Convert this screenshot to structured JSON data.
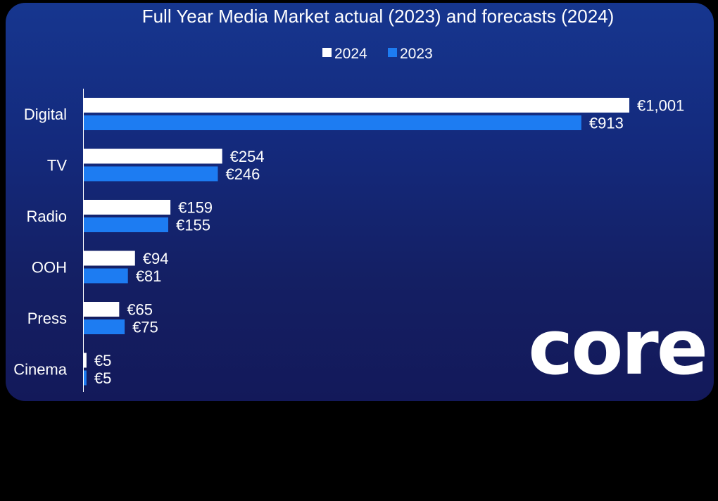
{
  "chart_data": {
    "type": "bar",
    "orientation": "horizontal",
    "title": "Full Year Media Market actual (2023) and forecasts (2024)",
    "categories": [
      "Digital",
      "TV",
      "Radio",
      "OOH",
      "Press",
      "Cinema"
    ],
    "series": [
      {
        "name": "2024",
        "color": "#ffffff",
        "values": [
          1001,
          254,
          159,
          94,
          65,
          5
        ],
        "labels": [
          "€1,001",
          "€254",
          "€159",
          "€94",
          "€65",
          "€5"
        ]
      },
      {
        "name": "2023",
        "color": "#1d7cf2",
        "values": [
          913,
          246,
          155,
          81,
          75,
          5
        ],
        "labels": [
          "€913",
          "€246",
          "€155",
          "€81",
          "€75",
          "€5"
        ]
      }
    ],
    "legend_position": "top-center",
    "grid": false
  },
  "logo": {
    "text": "core"
  },
  "colors": {
    "background_top": "#16368f",
    "background_bottom": "#13195a",
    "series_2024": "#ffffff",
    "series_2023": "#1d7cf2"
  }
}
